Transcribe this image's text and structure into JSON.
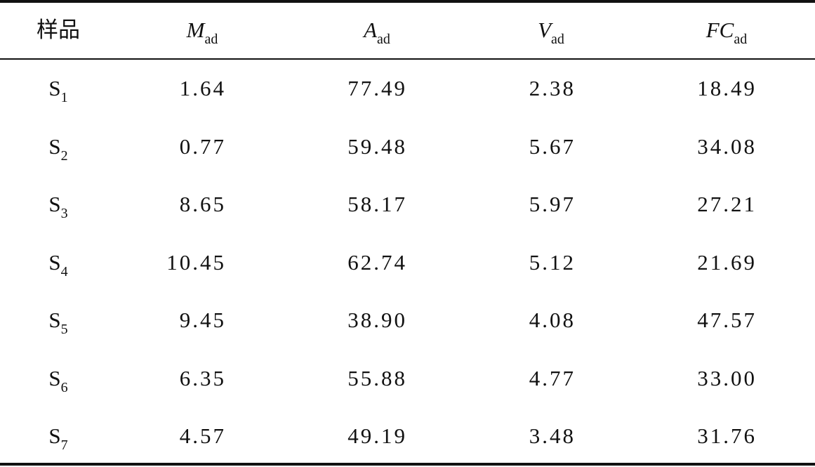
{
  "table": {
    "header": [
      {
        "main": "样品"
      },
      {
        "main": "M",
        "sub": "ad"
      },
      {
        "main": "A",
        "sub": "ad"
      },
      {
        "main": "V",
        "sub": "ad"
      },
      {
        "main": "FC",
        "sub": "ad"
      }
    ],
    "rows": [
      [
        {
          "main": "S",
          "sub": "1"
        },
        "1.64",
        "77.49",
        "2.38",
        "18.49"
      ],
      [
        {
          "main": "S",
          "sub": "2"
        },
        "0.77",
        "59.48",
        "5.67",
        "34.08"
      ],
      [
        {
          "main": "S",
          "sub": "3"
        },
        "8.65",
        "58.17",
        "5.97",
        "27.21"
      ],
      [
        {
          "main": "S",
          "sub": "4"
        },
        "10.45",
        "62.74",
        "5.12",
        "21.69"
      ],
      [
        {
          "main": "S",
          "sub": "5"
        },
        "9.45",
        "38.90",
        "4.08",
        "47.57"
      ],
      [
        {
          "main": "S",
          "sub": "6"
        },
        "6.35",
        "55.88",
        "4.77",
        "33.00"
      ],
      [
        {
          "main": "S",
          "sub": "7"
        },
        "4.57",
        "49.19",
        "3.48",
        "31.76"
      ]
    ]
  }
}
